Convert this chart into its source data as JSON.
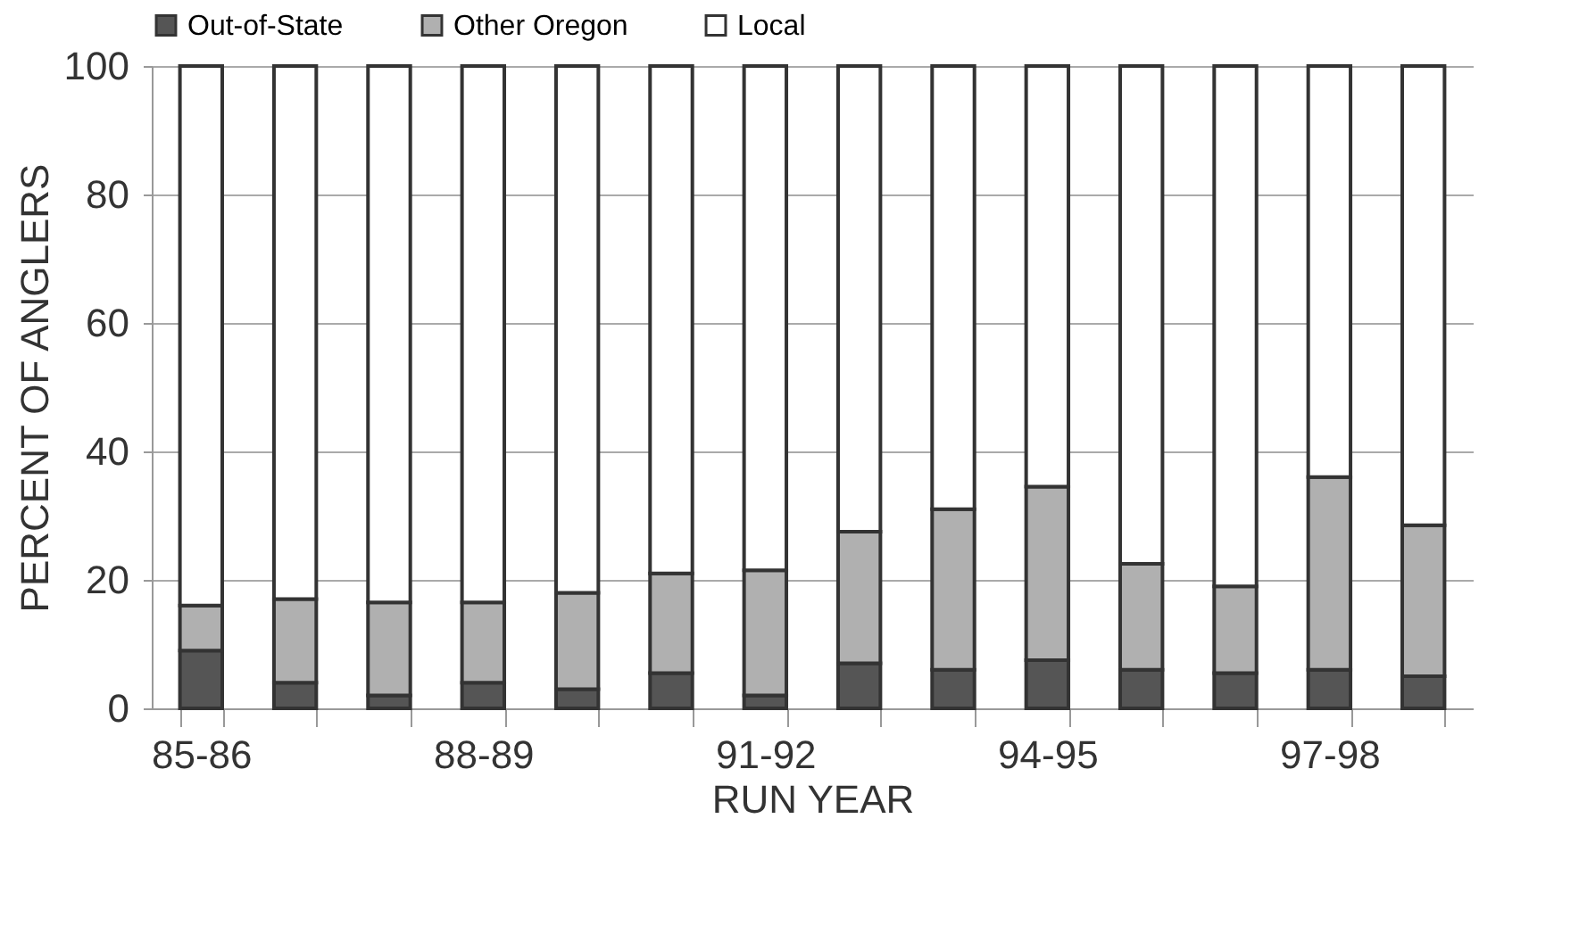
{
  "chart_data": {
    "type": "bar",
    "stacked": true,
    "xlabel": "RUN YEAR",
    "ylabel": "PERCENT OF ANGLERS",
    "categories": [
      "85-86",
      null,
      null,
      "88-89",
      null,
      null,
      "91-92",
      null,
      null,
      "94-95",
      null,
      null,
      "97-98",
      null
    ],
    "series": [
      {
        "name": "Out-of-State",
        "color": "#555555",
        "values": [
          9,
          4,
          2,
          4,
          3,
          5.5,
          2,
          7,
          6,
          7.5,
          6,
          5.5,
          6,
          5
        ]
      },
      {
        "name": "Other Oregon",
        "color": "#b0b0b0",
        "values": [
          7,
          13,
          14.5,
          12.5,
          15,
          15.5,
          19.5,
          20.5,
          25,
          27,
          16.5,
          13.5,
          30,
          23.5
        ]
      },
      {
        "name": "Local",
        "color": "#ffffff",
        "values": [
          84,
          83,
          83.5,
          83.5,
          82,
          79,
          78.5,
          72.5,
          69,
          65.5,
          77.5,
          81,
          64,
          71.5
        ]
      }
    ],
    "ylim": [
      0,
      100
    ],
    "yticks": [
      0,
      20,
      40,
      60,
      80,
      100
    ],
    "grid": "y",
    "legend": "top"
  }
}
